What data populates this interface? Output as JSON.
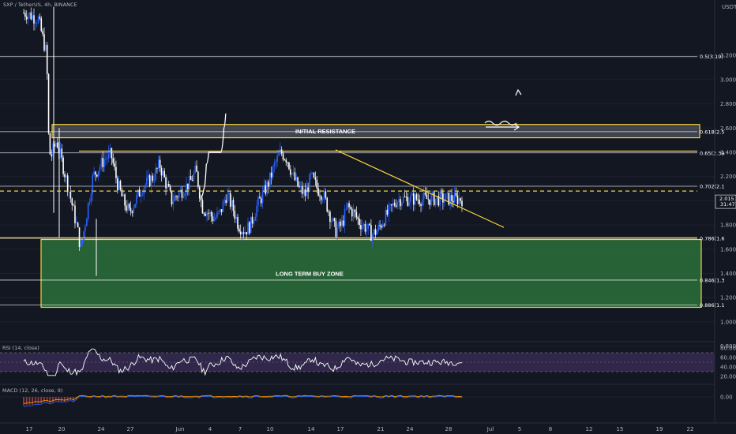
{
  "header": {
    "symbol": "SXP / TetherUS, 4h, BINANCE"
  },
  "price_axis": {
    "currency": "USDT",
    "current_price": "2.015",
    "countdown": "31:47"
  },
  "chart_data": {
    "type": "candlestick",
    "y_ticks": [
      3.2,
      3.0,
      2.8,
      2.6,
      2.4,
      2.2,
      2.0,
      1.8,
      1.6,
      1.4,
      1.2,
      1.0,
      0.8
    ],
    "x_ticks": [
      "17",
      "20",
      "24",
      "27",
      "Jun",
      "4",
      "7",
      "10",
      "14",
      "17",
      "21",
      "24",
      "28",
      "Jul",
      "5",
      "8",
      "12",
      "15",
      "19",
      "22"
    ],
    "fib_levels": [
      {
        "label": "0.5(3.19)",
        "value": 3.19
      },
      {
        "label": "0.618(2.5",
        "value": 2.57
      },
      {
        "label": "0.65(2.39",
        "value": 2.395
      },
      {
        "label": "0.702(2.1",
        "value": 2.12
      },
      {
        "label": "0.786(1.6",
        "value": 1.69
      },
      {
        "label": "0.846(1.3",
        "value": 1.345
      },
      {
        "label": "0.886(1.1",
        "value": 1.14
      }
    ],
    "zones": [
      {
        "name": "INITIAL RESISTANCE",
        "top": 2.63,
        "bottom": 2.52
      },
      {
        "name": "LONG TERM BUY ZONE",
        "top": 1.68,
        "bottom": 1.12
      }
    ],
    "current_price": 2.015,
    "dashed_level": 2.08,
    "resistance_line": 2.41,
    "projection_path": [
      [
        28.2,
        2.015
      ],
      [
        28.8,
        2.1
      ],
      [
        29.2,
        2.3
      ],
      [
        29.6,
        2.4
      ],
      [
        31.6,
        2.4
      ],
      [
        32.1,
        2.6
      ],
      [
        32.4,
        2.72
      ]
    ],
    "indicators": {
      "rsi": {
        "label": "RSI (14, close)",
        "ticks": [
          80.0,
          60.0,
          40.0,
          20.0
        ]
      },
      "macd": {
        "label": "MACD (12, 26, close, 9)",
        "ticks": [
          0.0
        ]
      }
    }
  },
  "colors": {
    "background": "#131722",
    "bull": "#2962ff",
    "bear": "#ffffff",
    "fib_line": "#ffffff",
    "yellow": "#f5d33f",
    "buy_zone": "#2b6e3a",
    "resistance_zone": "#787b86",
    "rsi_band": "#3d2f5c"
  }
}
